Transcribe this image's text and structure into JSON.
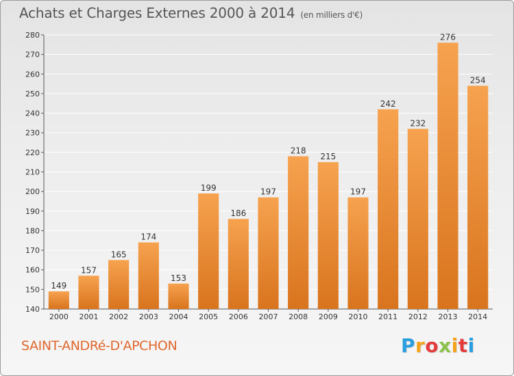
{
  "header": {
    "title": "Achats et Charges Externes 2000 à 2014",
    "unit": "(en milliers d'€)"
  },
  "footer": {
    "place": "SAINT-ANDRé-D'APCHON",
    "logo_letters": [
      "P",
      "r",
      "o",
      "x",
      "i",
      "t",
      "i"
    ]
  },
  "colors": {
    "bar_light": "#f6a24f",
    "bar_dark": "#d9741e",
    "place_text": "#e0662c",
    "grid": "#ffffff"
  },
  "chart_data": {
    "type": "bar",
    "title": "Achats et Charges Externes 2000 à 2014",
    "subtitle": "(en milliers d'€)",
    "categories": [
      "2000",
      "2001",
      "2002",
      "2003",
      "2004",
      "2005",
      "2006",
      "2007",
      "2008",
      "2009",
      "2010",
      "2011",
      "2012",
      "2013",
      "2014"
    ],
    "values": [
      149,
      157,
      165,
      174,
      153,
      199,
      186,
      197,
      218,
      215,
      197,
      242,
      232,
      276,
      254
    ],
    "ylim": [
      140,
      280
    ],
    "yticks": [
      140,
      150,
      160,
      170,
      180,
      190,
      200,
      210,
      220,
      230,
      240,
      250,
      260,
      270,
      280
    ],
    "grid": true,
    "data_labels": true,
    "legend": "none"
  }
}
